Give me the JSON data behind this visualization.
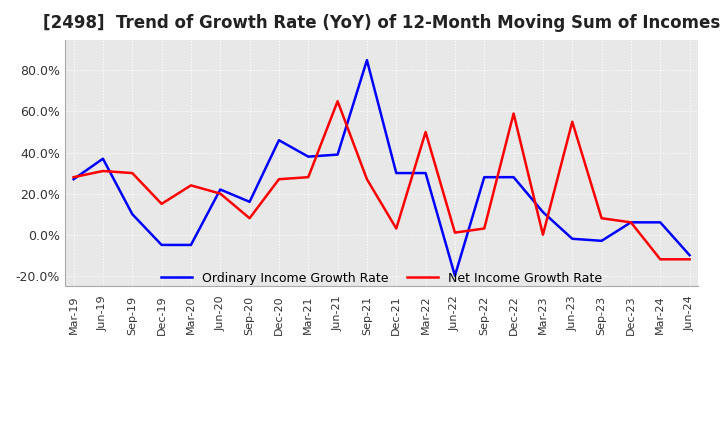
{
  "title": "[2498]  Trend of Growth Rate (YoY) of 12-Month Moving Sum of Incomes",
  "title_fontsize": 12,
  "legend_entries": [
    "Ordinary Income Growth Rate",
    "Net Income Growth Rate"
  ],
  "legend_colors": [
    "#0000ff",
    "#ff0000"
  ],
  "ylim": [
    -25,
    95
  ],
  "yticks": [
    -20.0,
    0.0,
    20.0,
    40.0,
    60.0,
    80.0
  ],
  "plot_bg": "#e8e8e8",
  "fig_bg": "#ffffff",
  "x_labels": [
    "Mar-19",
    "Jun-19",
    "Sep-19",
    "Dec-19",
    "Mar-20",
    "Jun-20",
    "Sep-20",
    "Dec-20",
    "Mar-21",
    "Jun-21",
    "Sep-21",
    "Dec-21",
    "Mar-22",
    "Jun-22",
    "Sep-22",
    "Dec-22",
    "Mar-23",
    "Jun-23",
    "Sep-23",
    "Dec-23",
    "Mar-24",
    "Jun-24"
  ],
  "ordinary_income": [
    27,
    37,
    10,
    -5,
    -5,
    22,
    16,
    46,
    38,
    39,
    85,
    30,
    30,
    -20,
    28,
    28,
    11,
    -2,
    -3,
    6,
    6,
    -10
  ],
  "net_income": [
    28,
    31,
    30,
    15,
    24,
    20,
    8,
    27,
    28,
    65,
    27,
    3,
    50,
    1,
    3,
    59,
    0,
    55,
    8,
    6,
    -12,
    -12
  ]
}
